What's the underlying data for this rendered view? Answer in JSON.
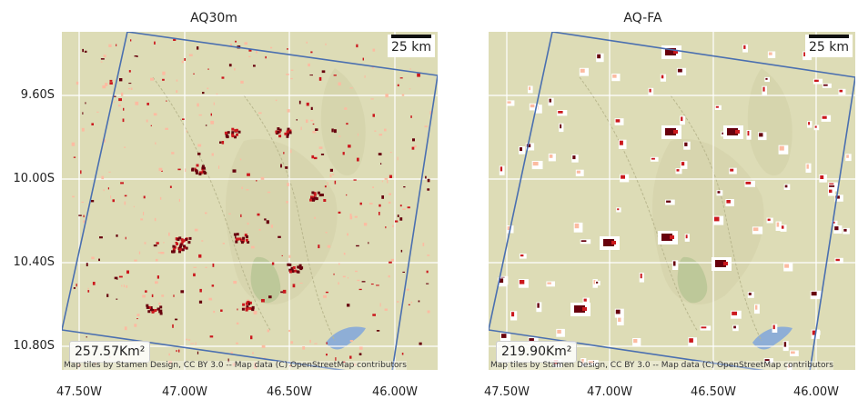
{
  "panels": [
    {
      "title": "AQ30m",
      "scale_label": "25 km",
      "area_label": "257.57Km²",
      "attribution": "Map tiles by Stamen Design, CC BY 3.0 -- Map data (C) OpenStreetMap contributors",
      "y_ticks": [
        "9.60S",
        "10.00S",
        "10.40S",
        "10.80S"
      ],
      "x_ticks": [
        "47.50W",
        "47.00W",
        "46.50W",
        "46.00W"
      ]
    },
    {
      "title": "AQ-FA",
      "scale_label": "25 km",
      "area_label": "219.90Km²",
      "attribution": "Map tiles by Stamen Design, CC BY 3.0 -- Map data (C) OpenStreetMap contributors",
      "y_ticks": [],
      "x_ticks": [
        "47.50W",
        "47.00W",
        "46.50W",
        "46.00W"
      ]
    }
  ],
  "colors": {
    "basemap": "#dddcb6",
    "gridline": "#ffffff",
    "footprint": "#4a6fb0",
    "water": "#8eaed6",
    "burn_high": "#67000d",
    "burn_mid": "#cb181d",
    "burn_low": "#fcbba1",
    "burn_halo": "#ffffff"
  }
}
